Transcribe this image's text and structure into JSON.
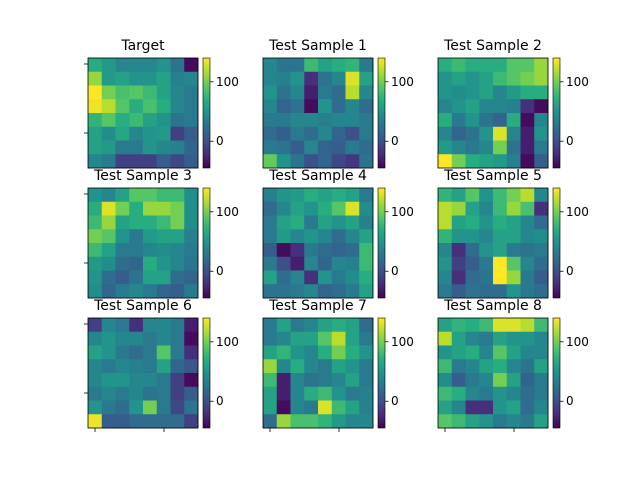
{
  "chart_data": {
    "type": "heatmap",
    "colormap": "viridis",
    "vmin": -45,
    "vmax": 140,
    "colorbar_ticks": [
      0,
      100
    ],
    "grid": false,
    "panels": [
      {
        "title": "Target",
        "values": [
          [
            70,
            55,
            40,
            40,
            40,
            50,
            25,
            -40
          ],
          [
            110,
            55,
            60,
            50,
            50,
            60,
            35,
            40
          ],
          [
            140,
            100,
            85,
            90,
            80,
            60,
            40,
            30
          ],
          [
            135,
            120,
            90,
            70,
            85,
            70,
            40,
            30
          ],
          [
            75,
            90,
            70,
            80,
            60,
            50,
            25,
            30
          ],
          [
            60,
            45,
            65,
            40,
            50,
            55,
            -10,
            10
          ],
          [
            60,
            55,
            30,
            30,
            50,
            40,
            35,
            15
          ],
          [
            40,
            30,
            -10,
            -10,
            -10,
            10,
            -5,
            10
          ]
        ]
      },
      {
        "title": "Test Sample 1",
        "values": [
          [
            40,
            25,
            25,
            80,
            60,
            70,
            75,
            30
          ],
          [
            40,
            35,
            50,
            -20,
            25,
            40,
            130,
            60
          ],
          [
            50,
            25,
            40,
            -30,
            30,
            20,
            120,
            40
          ],
          [
            40,
            15,
            25,
            -40,
            50,
            20,
            40,
            20
          ],
          [
            30,
            30,
            40,
            40,
            35,
            40,
            40,
            30
          ],
          [
            20,
            10,
            30,
            20,
            40,
            15,
            0,
            30
          ],
          [
            30,
            25,
            10,
            40,
            15,
            10,
            30,
            20
          ],
          [
            95,
            50,
            25,
            0,
            15,
            -5,
            -15,
            25
          ]
        ]
      },
      {
        "title": "Test Sample 2",
        "values": [
          [
            70,
            80,
            70,
            70,
            70,
            90,
            90,
            110
          ],
          [
            50,
            60,
            50,
            60,
            80,
            90,
            100,
            110
          ],
          [
            50,
            45,
            50,
            60,
            40,
            55,
            70,
            70
          ],
          [
            40,
            50,
            60,
            40,
            40,
            35,
            -20,
            -40
          ],
          [
            70,
            30,
            50,
            25,
            15,
            70,
            -40,
            40
          ],
          [
            40,
            15,
            25,
            50,
            130,
            40,
            -30,
            50
          ],
          [
            55,
            40,
            30,
            40,
            100,
            25,
            -30,
            30
          ],
          [
            140,
            100,
            70,
            60,
            55,
            35,
            -40,
            10
          ]
        ]
      },
      {
        "title": "Test Sample 3",
        "values": [
          [
            50,
            40,
            60,
            90,
            90,
            80,
            80,
            45
          ],
          [
            70,
            130,
            100,
            70,
            110,
            110,
            100,
            45
          ],
          [
            80,
            110,
            60,
            70,
            70,
            80,
            100,
            45
          ],
          [
            100,
            90,
            50,
            30,
            55,
            60,
            60,
            35
          ],
          [
            80,
            60,
            30,
            30,
            40,
            45,
            40,
            30
          ],
          [
            55,
            45,
            20,
            15,
            70,
            50,
            40,
            25
          ],
          [
            50,
            20,
            10,
            25,
            60,
            60,
            20,
            15
          ],
          [
            45,
            15,
            30,
            40,
            30,
            15,
            10,
            30
          ]
        ]
      },
      {
        "title": "Test Sample 4",
        "values": [
          [
            35,
            50,
            55,
            70,
            60,
            70,
            60,
            30
          ],
          [
            20,
            40,
            60,
            50,
            70,
            90,
            130,
            45
          ],
          [
            30,
            60,
            70,
            30,
            60,
            50,
            60,
            35
          ],
          [
            30,
            55,
            40,
            50,
            40,
            20,
            40,
            60
          ],
          [
            10,
            -40,
            -20,
            30,
            20,
            15,
            20,
            80
          ],
          [
            30,
            0,
            -30,
            40,
            15,
            40,
            35,
            80
          ],
          [
            60,
            20,
            40,
            -20,
            50,
            30,
            45,
            70
          ],
          [
            25,
            25,
            30,
            40,
            15,
            20,
            30,
            60
          ]
        ]
      },
      {
        "title": "Test Sample 5",
        "values": [
          [
            75,
            60,
            90,
            50,
            80,
            100,
            120,
            40
          ],
          [
            120,
            110,
            60,
            40,
            80,
            110,
            85,
            -20
          ],
          [
            120,
            60,
            70,
            50,
            70,
            60,
            40,
            20
          ],
          [
            75,
            50,
            50,
            40,
            60,
            60,
            40,
            45
          ],
          [
            40,
            -20,
            20,
            50,
            60,
            30,
            25,
            30
          ],
          [
            50,
            -10,
            10,
            30,
            140,
            90,
            40,
            20
          ],
          [
            40,
            -20,
            20,
            25,
            140,
            110,
            30,
            10
          ],
          [
            30,
            10,
            25,
            20,
            20,
            50,
            30,
            20
          ]
        ]
      },
      {
        "title": "Test Sample 6",
        "values": [
          [
            -10,
            40,
            30,
            -20,
            40,
            40,
            30,
            -30
          ],
          [
            40,
            50,
            40,
            40,
            30,
            40,
            30,
            -40
          ],
          [
            60,
            50,
            30,
            20,
            30,
            90,
            30,
            -20
          ],
          [
            40,
            30,
            40,
            35,
            30,
            60,
            15,
            5
          ],
          [
            40,
            50,
            50,
            40,
            40,
            30,
            -10,
            -40
          ],
          [
            30,
            40,
            30,
            40,
            25,
            30,
            -10,
            10
          ],
          [
            50,
            30,
            20,
            50,
            100,
            30,
            -5,
            25
          ],
          [
            135,
            10,
            10,
            20,
            20,
            20,
            20,
            -10
          ]
        ]
      },
      {
        "title": "Test Sample 7",
        "values": [
          [
            30,
            60,
            30,
            40,
            60,
            70,
            60,
            20
          ],
          [
            30,
            40,
            60,
            60,
            90,
            120,
            60,
            30
          ],
          [
            60,
            75,
            50,
            40,
            70,
            100,
            70,
            50
          ],
          [
            110,
            40,
            70,
            40,
            30,
            60,
            50,
            30
          ],
          [
            80,
            -30,
            40,
            25,
            30,
            40,
            60,
            30
          ],
          [
            60,
            -30,
            40,
            70,
            80,
            50,
            30,
            35
          ],
          [
            60,
            -40,
            40,
            30,
            130,
            80,
            60,
            35
          ],
          [
            20,
            110,
            85,
            85,
            75,
            55,
            40,
            40
          ]
        ]
      },
      {
        "title": "Test Sample 8",
        "values": [
          [
            60,
            75,
            70,
            80,
            130,
            130,
            120,
            80
          ],
          [
            120,
            60,
            40,
            30,
            60,
            50,
            50,
            40
          ],
          [
            50,
            60,
            70,
            40,
            90,
            60,
            40,
            40
          ],
          [
            80,
            30,
            40,
            60,
            70,
            40,
            25,
            60
          ],
          [
            45,
            10,
            30,
            40,
            100,
            60,
            15,
            30
          ],
          [
            80,
            70,
            40,
            30,
            50,
            40,
            20,
            30
          ],
          [
            60,
            40,
            -20,
            -20,
            50,
            60,
            20,
            40
          ],
          [
            90,
            80,
            60,
            50,
            30,
            40,
            30,
            60
          ]
        ]
      }
    ]
  }
}
